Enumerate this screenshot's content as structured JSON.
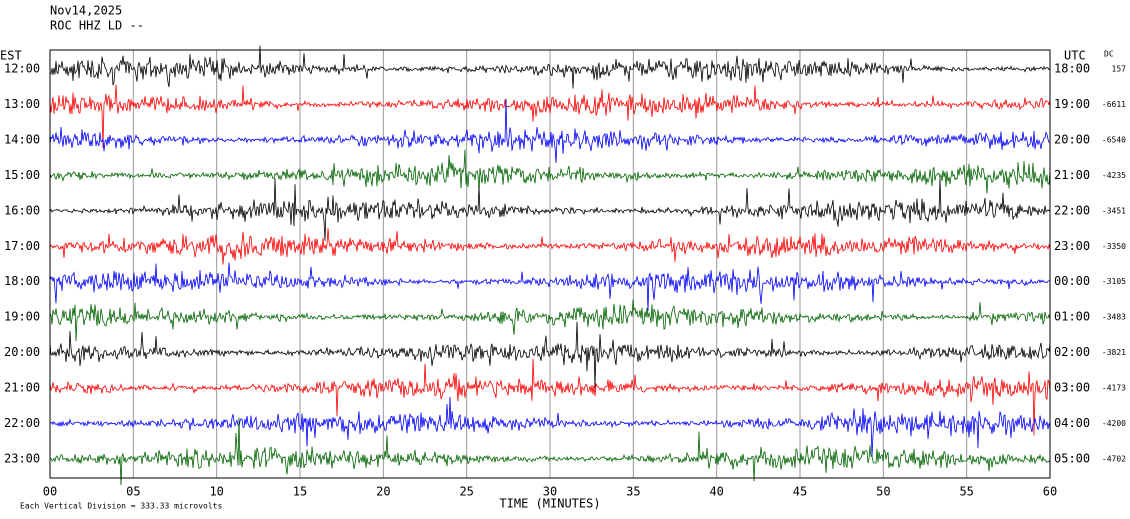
{
  "chart_data": {
    "type": "helicorder",
    "header": [
      "Nov14,2025",
      "ROC HHZ LD --"
    ],
    "left_label": "EST",
    "right_label": "UTC",
    "dc_label": "DC",
    "rows": [
      {
        "est": "12:00",
        "utc": "18:00",
        "dc": 157,
        "color": "#000000"
      },
      {
        "est": "13:00",
        "utc": "19:00",
        "dc": -6611,
        "color": "#ff0000"
      },
      {
        "est": "14:00",
        "utc": "20:00",
        "dc": -6540,
        "color": "#0000ff"
      },
      {
        "est": "15:00",
        "utc": "21:00",
        "dc": -4235,
        "color": "#006400"
      },
      {
        "est": "16:00",
        "utc": "22:00",
        "dc": -3451,
        "color": "#000000"
      },
      {
        "est": "17:00",
        "utc": "23:00",
        "dc": -3350,
        "color": "#ff0000"
      },
      {
        "est": "18:00",
        "utc": "00:00",
        "dc": -3105,
        "color": "#0000ff"
      },
      {
        "est": "19:00",
        "utc": "01:00",
        "dc": -3483,
        "color": "#006400"
      },
      {
        "est": "20:00",
        "utc": "02:00",
        "dc": -3821,
        "color": "#000000"
      },
      {
        "est": "21:00",
        "utc": "03:00",
        "dc": -4173,
        "color": "#ff0000"
      },
      {
        "est": "22:00",
        "utc": "04:00",
        "dc": -4200,
        "color": "#0000ff"
      },
      {
        "est": "23:00",
        "utc": "05:00",
        "dc": -4702,
        "color": "#006400"
      }
    ],
    "x_label": "TIME (MINUTES)",
    "xlim": [
      0,
      60
    ],
    "xticks": [
      {
        "value": 0,
        "label": "00"
      },
      {
        "value": 5,
        "label": "05"
      },
      10,
      15,
      20,
      25,
      30,
      35,
      40,
      45,
      50,
      55,
      60
    ],
    "footer": "Each Vertical Division =  333.33 microvolts"
  }
}
